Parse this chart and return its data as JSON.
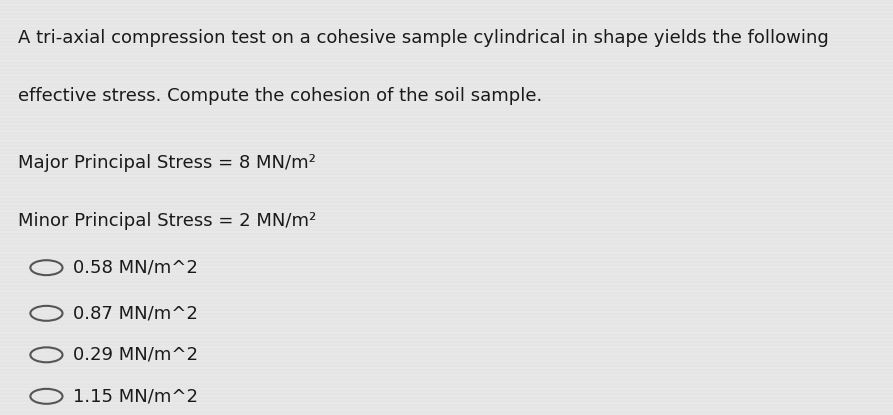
{
  "background_color": "#e8e8e8",
  "text_color": "#1a1a1a",
  "title_lines": [
    "A tri-axial compression test on a cohesive sample cylindrical in shape yields the following",
    "effective stress. Compute the cohesion of the soil sample."
  ],
  "stress_lines": [
    "Major Principal Stress = 8 MN/m²",
    "Minor Principal Stress = 2 MN/m²"
  ],
  "options": [
    "0.58 MN/m^2",
    "0.87 MN/m^2",
    "0.29 MN/m^2",
    "1.15 MN/m^2"
  ],
  "title_fontsize": 13.0,
  "stress_fontsize": 13.0,
  "option_fontsize": 13.0,
  "figsize": [
    8.93,
    4.15
  ],
  "dpi": 100
}
